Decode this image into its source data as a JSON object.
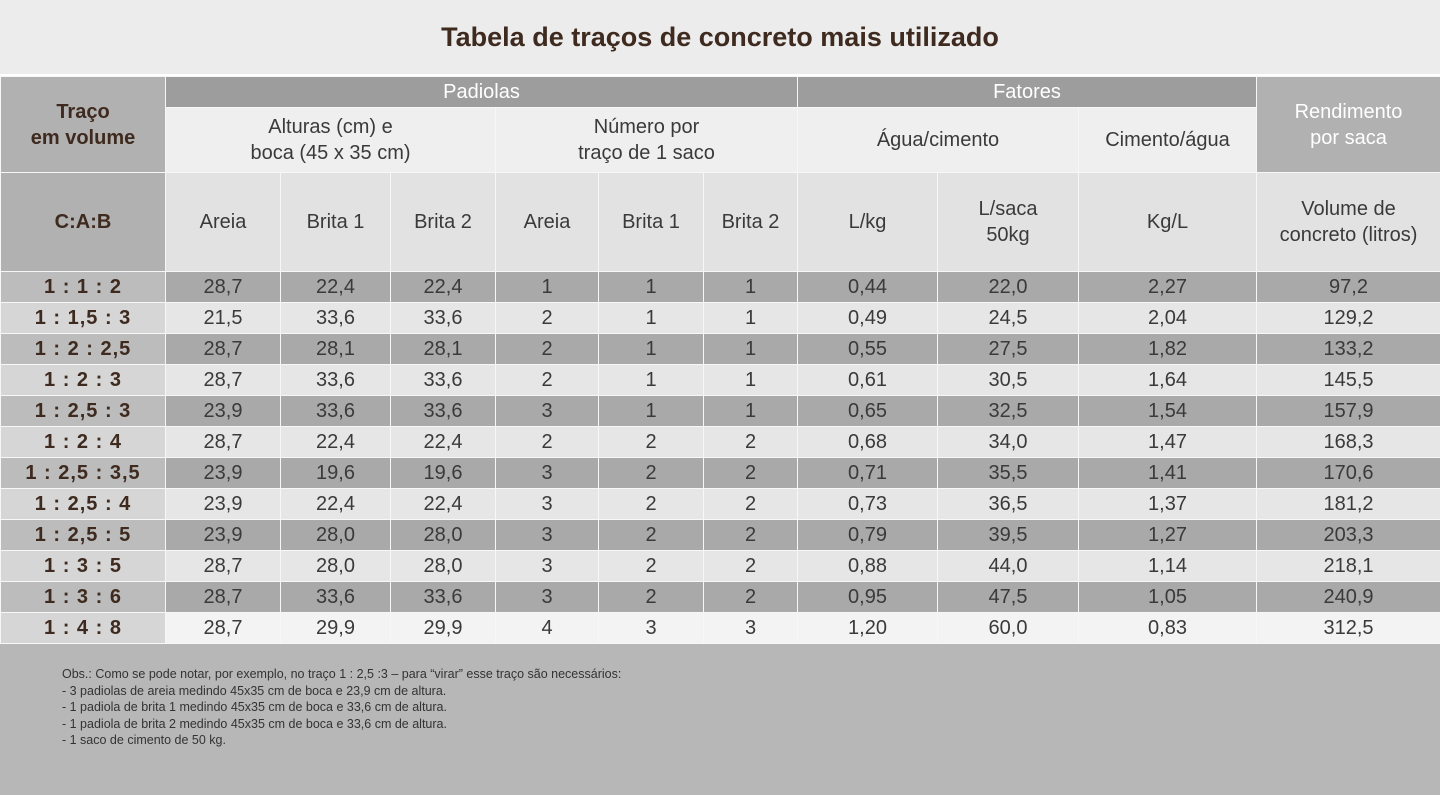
{
  "title": "Tabela de traços de concreto mais utilizado",
  "header": {
    "traco": [
      "Traço",
      "em volume"
    ],
    "padiolas": "Padiolas",
    "fatores": "Fatores",
    "rendimento": [
      "Rendimento",
      "por saca"
    ],
    "alturas": [
      "Alturas (cm) e",
      "boca (45 x 35 cm)"
    ],
    "numero": [
      "Número por",
      "traço de 1 saco"
    ],
    "agua_cimento": "Água/cimento",
    "cimento_agua": "Cimento/água",
    "columns": [
      [
        "C:A:B"
      ],
      [
        "Areia"
      ],
      [
        "Brita 1"
      ],
      [
        "Brita 2"
      ],
      [
        "Areia"
      ],
      [
        "Brita 1"
      ],
      [
        "Brita 2"
      ],
      [
        "L/kg"
      ],
      [
        "L/saca",
        "50kg"
      ],
      [
        "Kg/L"
      ],
      [
        "Volume de",
        "concreto (litros)"
      ]
    ]
  },
  "rows": [
    [
      "1 : 1 : 2",
      "28,7",
      "22,4",
      "22,4",
      "1",
      "1",
      "1",
      "0,44",
      "22,0",
      "2,27",
      "97,2"
    ],
    [
      "1 : 1,5 : 3",
      "21,5",
      "33,6",
      "33,6",
      "2",
      "1",
      "1",
      "0,49",
      "24,5",
      "2,04",
      "129,2"
    ],
    [
      "1 : 2 : 2,5",
      "28,7",
      "28,1",
      "28,1",
      "2",
      "1",
      "1",
      "0,55",
      "27,5",
      "1,82",
      "133,2"
    ],
    [
      "1 : 2 : 3",
      "28,7",
      "33,6",
      "33,6",
      "2",
      "1",
      "1",
      "0,61",
      "30,5",
      "1,64",
      "145,5"
    ],
    [
      "1 : 2,5 : 3",
      "23,9",
      "33,6",
      "33,6",
      "3",
      "1",
      "1",
      "0,65",
      "32,5",
      "1,54",
      "157,9"
    ],
    [
      "1 : 2 : 4",
      "28,7",
      "22,4",
      "22,4",
      "2",
      "2",
      "2",
      "0,68",
      "34,0",
      "1,47",
      "168,3"
    ],
    [
      "1 : 2,5 : 3,5",
      "23,9",
      "19,6",
      "19,6",
      "3",
      "2",
      "2",
      "0,71",
      "35,5",
      "1,41",
      "170,6"
    ],
    [
      "1 : 2,5 : 4",
      "23,9",
      "22,4",
      "22,4",
      "3",
      "2",
      "2",
      "0,73",
      "36,5",
      "1,37",
      "181,2"
    ],
    [
      "1 : 2,5 : 5",
      "23,9",
      "28,0",
      "28,0",
      "3",
      "2",
      "2",
      "0,79",
      "39,5",
      "1,27",
      "203,3"
    ],
    [
      "1 : 3 : 5",
      "28,7",
      "28,0",
      "28,0",
      "3",
      "2",
      "2",
      "0,88",
      "44,0",
      "1,14",
      "218,1"
    ],
    [
      "1 : 3 : 6",
      "28,7",
      "33,6",
      "33,6",
      "3",
      "2",
      "2",
      "0,95",
      "47,5",
      "1,05",
      "240,9"
    ],
    [
      "1 : 4 : 8",
      "28,7",
      "29,9",
      "29,9",
      "4",
      "3",
      "3",
      "1,20",
      "60,0",
      "0,83",
      "312,5"
    ]
  ],
  "notes": [
    "Obs.: Como se pode notar, por exemplo, no traço 1 : 2,5 :3 – para “virar” esse traço são necessários:",
    "- 3 padiolas de areia medindo 45x35 cm de boca e 23,9 cm de altura.",
    "- 1 padiola de brita 1 medindo 45x35 cm de boca e 33,6 cm de altura.",
    "- 1 padiola de brita 2 medindo 45x35 cm de boca e 33,6 cm de altura.",
    "- 1 saco de cimento de 50 kg."
  ]
}
